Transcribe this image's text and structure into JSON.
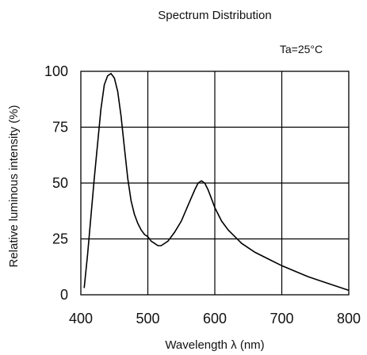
{
  "chart_data": {
    "type": "line",
    "title": "Spectrum Distribution",
    "annotation": "Ta=25°C",
    "xlabel": "Wavelength  λ (nm)",
    "ylabel": "Relative luminous intensity  (%)",
    "xlim": [
      400,
      800
    ],
    "ylim": [
      0,
      100
    ],
    "xticks": [
      "400",
      "500",
      "600",
      "700",
      "800"
    ],
    "yticks": [
      "0",
      "25",
      "50",
      "75",
      "100"
    ],
    "grid": true,
    "series": [
      {
        "x": [
          405,
          410,
          420,
          430,
          435,
          440,
          445,
          450,
          455,
          460,
          465,
          470,
          475,
          480,
          485,
          490,
          495,
          500,
          505,
          510,
          515,
          520,
          530,
          540,
          550,
          560,
          570,
          575,
          580,
          585,
          590,
          595,
          600,
          610,
          620,
          630,
          640,
          650,
          660,
          680,
          700,
          720,
          740,
          760,
          780,
          800
        ],
        "y": [
          3,
          18,
          52,
          83,
          94,
          98,
          99,
          97,
          91,
          80,
          66,
          52,
          42,
          36,
          32,
          29,
          27,
          26,
          24,
          23,
          22,
          22,
          24,
          28,
          33,
          40,
          47,
          50,
          51,
          50,
          47,
          43,
          39,
          33,
          29,
          26,
          23,
          21,
          19,
          16,
          13,
          10.5,
          8,
          6,
          4,
          2
        ]
      }
    ]
  }
}
